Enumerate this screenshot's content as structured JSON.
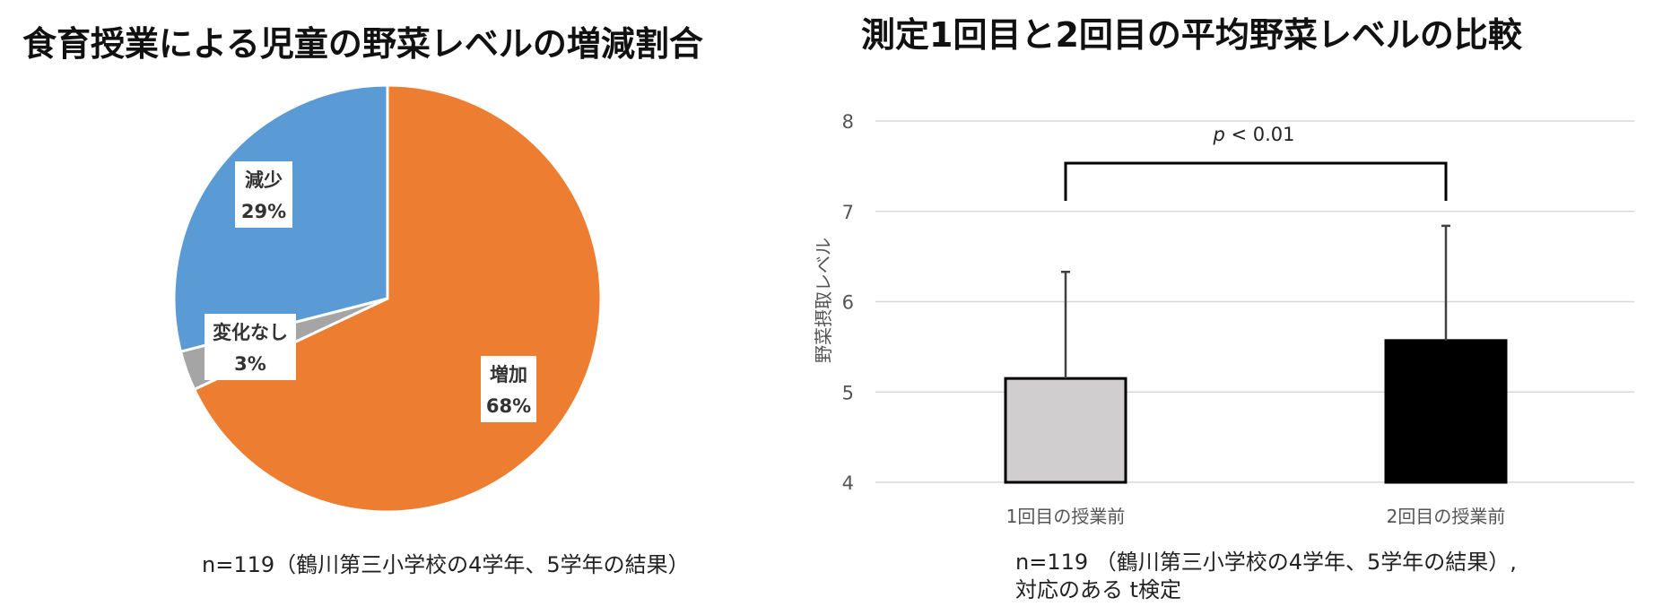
{
  "chart_data": [
    {
      "type": "pie",
      "title": "食育授業による児童の野菜レベルの増減割合",
      "slices": [
        {
          "label": "増加",
          "value": 68,
          "display": "68%",
          "color": "#ED7D31"
        },
        {
          "label": "変化なし",
          "value": 3,
          "display": "3%",
          "color": "#A5A5A5"
        },
        {
          "label": "減少",
          "value": 29,
          "display": "29%",
          "color": "#5B9BD5"
        }
      ],
      "note": "n=119（鶴川第三小学校の4学年、5学年の結果）"
    },
    {
      "type": "bar",
      "title": "測定1回目と2回目の平均野菜レベルの比較",
      "categories": [
        "1回目の授業前",
        "2回目の授業前"
      ],
      "values": [
        5.15,
        5.57
      ],
      "error_upper": [
        6.33,
        6.84
      ],
      "colors": [
        "#D0CECE",
        "#000000"
      ],
      "ylabel": "野菜摂取レベル",
      "ylim": [
        4,
        8
      ],
      "yticks": [
        "4",
        "5",
        "6",
        "7",
        "8"
      ],
      "grid": true,
      "significance": {
        "p": "p",
        "rest": " < 0.01"
      },
      "note_lines": [
        "n=119 （鶴川第三小学校の4学年、5学年の結果）,",
        "対応のある t検定"
      ]
    }
  ]
}
